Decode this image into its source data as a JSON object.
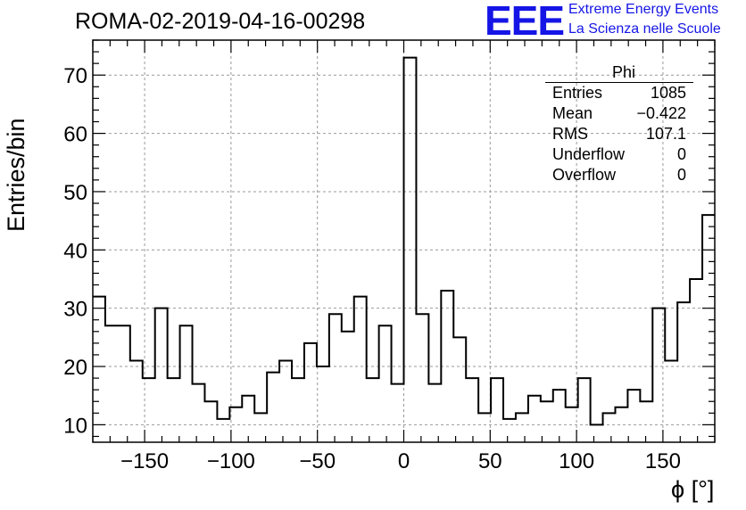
{
  "header": {
    "title": "ROMA-02-2019-04-16-00298",
    "logo_text": "EEE",
    "logo_line1": "Extreme Energy Events",
    "logo_line2": "La Scienza nelle Scuole"
  },
  "stats_box": {
    "title": "Phi",
    "rows": [
      {
        "label": "Entries",
        "value": "1085"
      },
      {
        "label": "Mean",
        "value": "−0.422"
      },
      {
        "label": "RMS",
        "value": "107.1"
      },
      {
        "label": "Underflow",
        "value": "0"
      },
      {
        "label": "Overflow",
        "value": "0"
      }
    ]
  },
  "colors": {
    "logo": "#1515e6",
    "grid": "#999999",
    "hist": "#000000"
  },
  "chart_data": {
    "type": "bar",
    "style": "step-histogram",
    "xlabel": "ϕ [°]",
    "ylabel": "Entries/bin",
    "xlim": [
      -180,
      180
    ],
    "ylim": [
      7,
      76
    ],
    "bin_width": 7.2,
    "xticks": [
      -150,
      -100,
      -50,
      0,
      50,
      100,
      150
    ],
    "yticks": [
      10,
      20,
      30,
      40,
      50,
      60,
      70
    ],
    "xtick_labels": [
      "−150",
      "−100",
      "−50",
      "0",
      "50",
      "100",
      "150"
    ],
    "ytick_labels": [
      "10",
      "20",
      "30",
      "40",
      "50",
      "60",
      "70"
    ],
    "grid": true,
    "values": [
      32,
      27,
      27,
      21,
      18,
      30,
      18,
      27,
      17,
      14,
      11,
      13,
      15,
      12,
      19,
      21,
      18,
      24,
      20,
      29,
      26,
      32,
      18,
      27,
      17,
      73,
      29,
      17,
      33,
      25,
      18,
      12,
      18,
      11,
      12,
      15,
      14,
      16,
      13,
      18,
      10,
      12,
      13,
      16,
      14,
      30,
      21,
      31,
      35,
      46
    ]
  }
}
